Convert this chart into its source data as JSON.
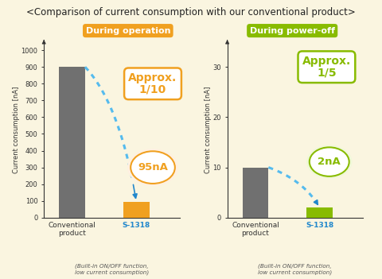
{
  "title": "<Comparison of current consumption with our conventional product>",
  "title_fontsize": 8.5,
  "bg_color": "#faf5e0",
  "left": {
    "label": "During operation",
    "label_bg": "#f0a020",
    "bar_vals": [
      900,
      95
    ],
    "bar_colors": [
      "#707070",
      "#f0a020"
    ],
    "ylabel": "Current consumption [nA]",
    "ylim": [
      0,
      1050
    ],
    "yticks": [
      0,
      100,
      200,
      300,
      400,
      500,
      600,
      700,
      800,
      900,
      1000
    ],
    "approx_line1": "Approx.",
    "approx_line2": "1/10",
    "approx_color": "#f0a020",
    "bubble_text": "95nA",
    "bubble_color": "#f0a020",
    "bubble_bg": "#fff0e0",
    "s1318_color": "#2288cc",
    "xlabel_note": "(Built-in ON/OFF function,\nlow current consumption)"
  },
  "right": {
    "label": "During power-off",
    "label_bg": "#88bb00",
    "bar_vals": [
      10,
      2
    ],
    "bar_colors": [
      "#707070",
      "#88bb00"
    ],
    "ylabel": "Current consumption [nA]",
    "ylim": [
      0,
      35
    ],
    "yticks": [
      0,
      10,
      20,
      30
    ],
    "approx_line1": "Approx.",
    "approx_line2": "1/5",
    "approx_color": "#88bb00",
    "bubble_text": "2nA",
    "bubble_color": "#88bb00",
    "bubble_bg": "#f0f8d8",
    "s1318_color": "#2288cc",
    "xlabel_note": "(Built-in ON/OFF function,\nlow current consumption)"
  }
}
